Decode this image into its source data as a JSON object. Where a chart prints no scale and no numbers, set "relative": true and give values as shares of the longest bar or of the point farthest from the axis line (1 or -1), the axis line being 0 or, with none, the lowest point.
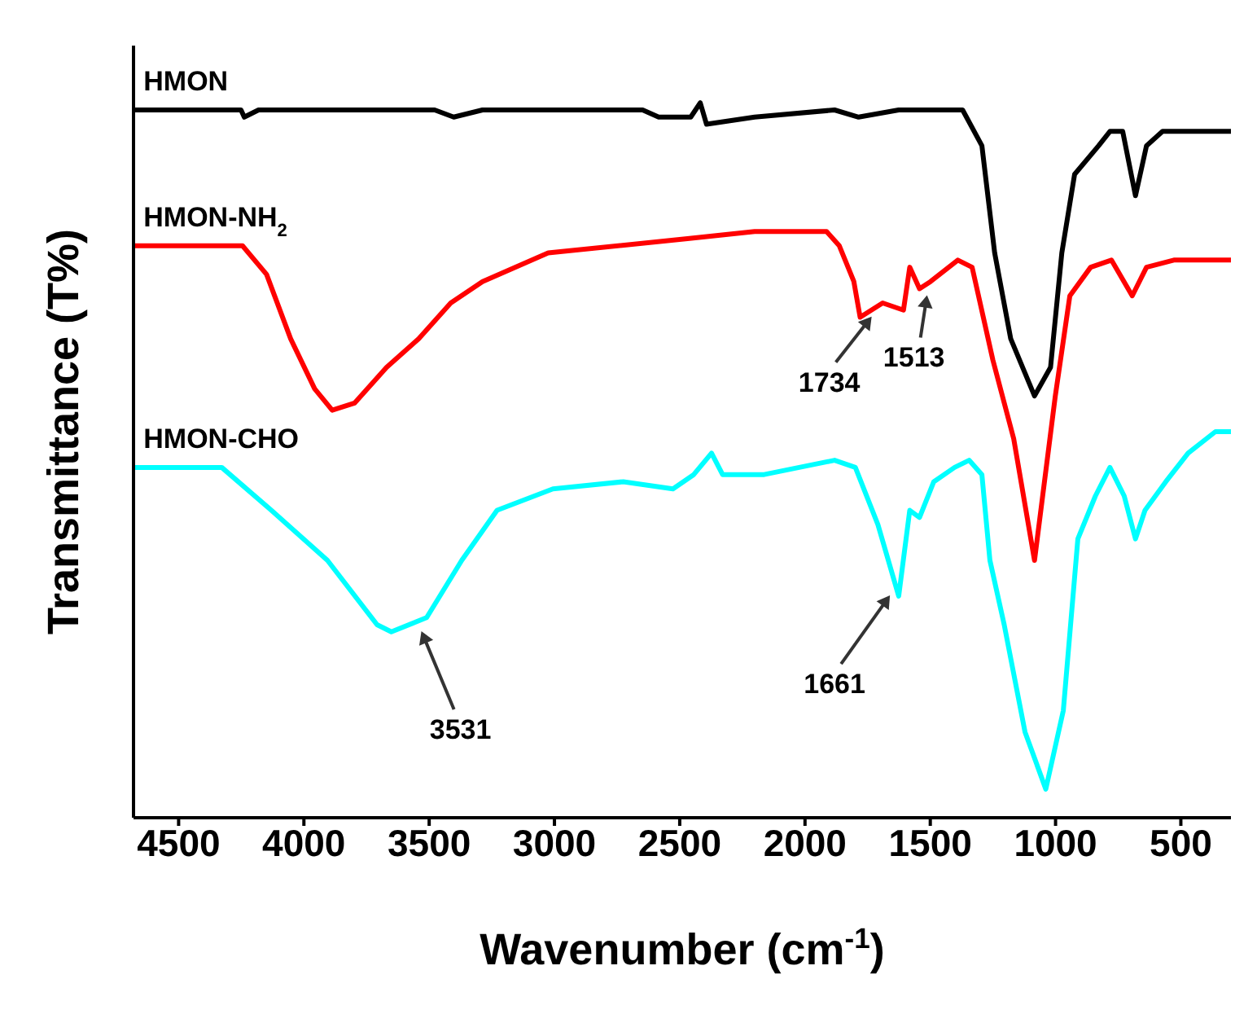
{
  "chart_data": {
    "type": "line",
    "relative": true,
    "xlabel": "Wavenumber (cm$^{-1}$)",
    "ylabel": "Transmittance (T%)",
    "xlim": [
      4680,
      300
    ],
    "xticks": [
      4500,
      4000,
      3500,
      3000,
      2500,
      2000,
      1500,
      1000,
      500
    ],
    "grid": false,
    "legend": false,
    "marker": "none",
    "line_style": "solid",
    "series": [
      {
        "name": "HMON",
        "color": "#000000",
        "x": [
          4679,
          4251,
          4238,
          4181,
          3478,
          3402,
          3287,
          2648,
          2584,
          2456,
          2418,
          2393,
          2201,
          1882,
          1786,
          1626,
          1371,
          1294,
          1243,
          1179,
          1084,
          1020,
          975,
          924,
          828,
          783,
          732,
          681,
          637,
          573,
          300
        ],
        "values": [
          0.99,
          0.99,
          0.98,
          0.99,
          0.99,
          0.98,
          0.99,
          0.99,
          0.98,
          0.98,
          1.0,
          0.97,
          0.98,
          0.99,
          0.98,
          0.99,
          0.99,
          0.94,
          0.79,
          0.67,
          0.59,
          0.63,
          0.79,
          0.9,
          0.94,
          0.96,
          0.96,
          0.87,
          0.94,
          0.96,
          0.96
        ]
      },
      {
        "name": "HMON-NH$_{2}$",
        "color": "#ff0000",
        "x": [
          4679,
          4245,
          4149,
          4053,
          3957,
          3887,
          3798,
          3670,
          3542,
          3414,
          3287,
          3025,
          2469,
          2201,
          1914,
          1863,
          1805,
          1780,
          1690,
          1607,
          1582,
          1543,
          1499,
          1390,
          1333,
          1250,
          1167,
          1084,
          1001,
          943,
          860,
          777,
          694,
          637,
          528,
          300
        ],
        "values": [
          0.8,
          0.8,
          0.76,
          0.67,
          0.6,
          0.57,
          0.58,
          0.63,
          0.67,
          0.72,
          0.75,
          0.79,
          0.81,
          0.82,
          0.82,
          0.8,
          0.75,
          0.7,
          0.72,
          0.71,
          0.77,
          0.74,
          0.75,
          0.78,
          0.77,
          0.64,
          0.53,
          0.36,
          0.59,
          0.73,
          0.77,
          0.78,
          0.73,
          0.77,
          0.78,
          0.78
        ]
      },
      {
        "name": "HMON-CHO",
        "color": "#00ffff",
        "x": [
          4679,
          4328,
          4130,
          3906,
          3708,
          3651,
          3510,
          3370,
          3229,
          3006,
          2725,
          2527,
          2444,
          2373,
          2329,
          2163,
          1882,
          1799,
          1709,
          1626,
          1582,
          1543,
          1486,
          1403,
          1345,
          1294,
          1262,
          1205,
          1122,
          1039,
          969,
          911,
          841,
          783,
          726,
          681,
          643,
          560,
          471,
          362,
          300
        ],
        "values": [
          0.49,
          0.49,
          0.43,
          0.36,
          0.27,
          0.26,
          0.28,
          0.36,
          0.43,
          0.46,
          0.47,
          0.46,
          0.48,
          0.51,
          0.48,
          0.48,
          0.5,
          0.49,
          0.41,
          0.31,
          0.43,
          0.42,
          0.47,
          0.49,
          0.5,
          0.48,
          0.36,
          0.27,
          0.12,
          0.04,
          0.15,
          0.39,
          0.45,
          0.49,
          0.45,
          0.39,
          0.43,
          0.47,
          0.51,
          0.54,
          0.54
        ]
      }
    ],
    "annotations": [
      {
        "text": "1734",
        "x": 1734,
        "y": 0.71
      },
      {
        "text": "1513",
        "x": 1513,
        "y": 0.74
      },
      {
        "text": "3531",
        "x": 3531,
        "y": 0.27
      },
      {
        "text": "1661",
        "x": 1661,
        "y": 0.32
      }
    ]
  }
}
